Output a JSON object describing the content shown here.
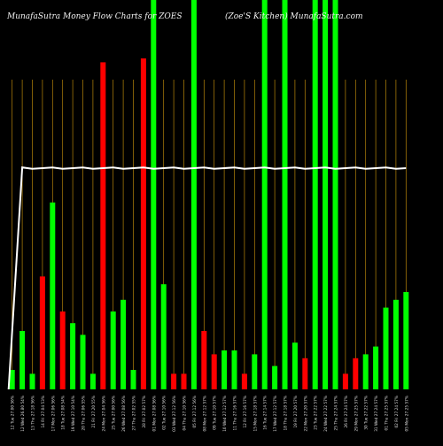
{
  "header": {
    "title_left": "MunafaSutra  Money Flow  Charts for ZOES",
    "title_right": "(Zoe'S Kitchen)  MunafaSutra.com"
  },
  "colors": {
    "background": "#000000",
    "grid": "#b8860b",
    "up": "#00ff00",
    "down": "#ff0000",
    "line": "#ffffff",
    "label": "#dddddd"
  },
  "chart_data": {
    "type": "bar",
    "title": "MunafaSutra  Money Flow  Charts for ZOES",
    "subtitle": "(Zoe'S Kitchen)  MunafaSutra.com",
    "categories": [
      "12 Tue 27.00 56%",
      "12 Wed 26.80 54%",
      "13 Thu 27.18 56%",
      "14 Fri 27.04 53%",
      "17 Mon 27.06 56%",
      "18 Tue 27.08 54%",
      "19 Wed 27.10 54%",
      "20 Thu 27.06 55%",
      "21 Fri 27.20 55%",
      "24 Mon 27.04 56%",
      "25 Tue 27.00 56%",
      "26 Wed 27.08 56%",
      "27 Thu 27.02 55%",
      "28 Fri 27.02 57%",
      "01 Mon 27.08 56%",
      "02 Tue 27.10 56%",
      "03 Wed 27.12 56%",
      "04 Thu 27.10 56%",
      "05 Fri 27.12 56%",
      "08 Mon 27.12 57%",
      "09 Tue 27.10 57%",
      "10 Wed 27.12 57%",
      "11 Thu 27.16 57%",
      "12 Fri 27.16 57%",
      "15 Mon 27.18 57%",
      "16 Tue 27.14 57%",
      "17 Wed 27.12 57%",
      "18 Thu 27.18 57%",
      "19 Fri 27.20 57%",
      "22 Mon 27.20 57%",
      "23 Tue 27.22 57%",
      "24 Wed 27.22 57%",
      "25 Thu 27.24 57%",
      "26 Fri 27.24 57%",
      "29 Mon 27.25 57%",
      "30 Tue 27.22 57%",
      "31 Wed 27.24 57%",
      "01 Thu 27.25 57%",
      "02 Fri 27.24 57%",
      "05 Mon 27.25 57%"
    ],
    "bars": [
      {
        "value": 5,
        "color": "green"
      },
      {
        "value": 15,
        "color": "green"
      },
      {
        "value": 4,
        "color": "green"
      },
      {
        "value": 29,
        "color": "red"
      },
      {
        "value": 48,
        "color": "green"
      },
      {
        "value": 20,
        "color": "red"
      },
      {
        "value": 17,
        "color": "green"
      },
      {
        "value": 14,
        "color": "green"
      },
      {
        "value": 4,
        "color": "green"
      },
      {
        "value": 84,
        "color": "red"
      },
      {
        "value": 20,
        "color": "green"
      },
      {
        "value": 23,
        "color": "green"
      },
      {
        "value": 5,
        "color": "green"
      },
      {
        "value": 85,
        "color": "red"
      },
      {
        "value": 100,
        "color": "green"
      },
      {
        "value": 27,
        "color": "green"
      },
      {
        "value": 4,
        "color": "red"
      },
      {
        "value": 4,
        "color": "red"
      },
      {
        "value": 100,
        "color": "green"
      },
      {
        "value": 15,
        "color": "red"
      },
      {
        "value": 9,
        "color": "red"
      },
      {
        "value": 10,
        "color": "green"
      },
      {
        "value": 10,
        "color": "green"
      },
      {
        "value": 4,
        "color": "red"
      },
      {
        "value": 9,
        "color": "green"
      },
      {
        "value": 100,
        "color": "green"
      },
      {
        "value": 6,
        "color": "green"
      },
      {
        "value": 100,
        "color": "green"
      },
      {
        "value": 12,
        "color": "green"
      },
      {
        "value": 8,
        "color": "red"
      },
      {
        "value": 100,
        "color": "green"
      },
      {
        "value": 100,
        "color": "green"
      },
      {
        "value": 100,
        "color": "green"
      },
      {
        "value": 4,
        "color": "red"
      },
      {
        "value": 8,
        "color": "red"
      },
      {
        "value": 9,
        "color": "green"
      },
      {
        "value": 11,
        "color": "green"
      },
      {
        "value": 21,
        "color": "green"
      },
      {
        "value": 23,
        "color": "green"
      },
      {
        "value": 25,
        "color": "green"
      }
    ],
    "line": [
      0,
      60,
      60,
      60,
      60,
      60,
      60,
      60,
      60,
      60,
      60,
      60,
      60,
      60,
      60,
      60,
      60,
      60,
      60,
      60,
      60,
      60,
      60,
      60,
      60,
      60,
      60,
      60,
      60,
      60,
      60,
      60,
      60,
      60,
      60,
      60,
      60,
      60,
      60,
      60
    ],
    "ylim": [
      0,
      100
    ],
    "grid": true,
    "legend": "none"
  }
}
